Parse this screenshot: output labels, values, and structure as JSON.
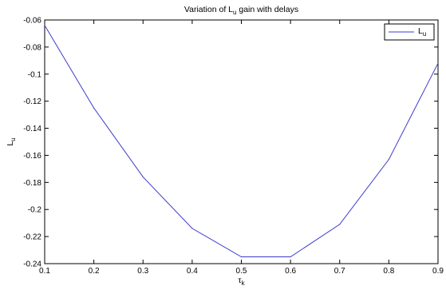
{
  "chart_data": {
    "type": "line",
    "title": {
      "prefix": "Variation of L",
      "sub": "u",
      "suffix": " gain with delays"
    },
    "xlabel": {
      "base": "τ",
      "sub": "k"
    },
    "ylabel": {
      "base": "L",
      "sub": "u"
    },
    "xlim": [
      0.1,
      0.9
    ],
    "ylim": [
      -0.24,
      -0.06
    ],
    "xticks": [
      "0.1",
      "0.2",
      "0.3",
      "0.4",
      "0.5",
      "0.6",
      "0.7",
      "0.8",
      "0.9"
    ],
    "yticks": [
      "-0.06",
      "-0.08",
      "-0.1",
      "-0.12",
      "-0.14",
      "-0.16",
      "-0.18",
      "-0.2",
      "-0.22",
      "-0.24"
    ],
    "grid": false,
    "legend_position": "top-right",
    "series": [
      {
        "name": {
          "base": "L",
          "sub": "u"
        },
        "color": "#3c3cc8",
        "x": [
          0.1,
          0.2,
          0.3,
          0.4,
          0.5,
          0.6,
          0.7,
          0.8,
          0.9
        ],
        "y": [
          -0.064,
          -0.125,
          -0.176,
          -0.214,
          -0.235,
          -0.235,
          -0.211,
          -0.163,
          -0.092
        ]
      }
    ]
  }
}
